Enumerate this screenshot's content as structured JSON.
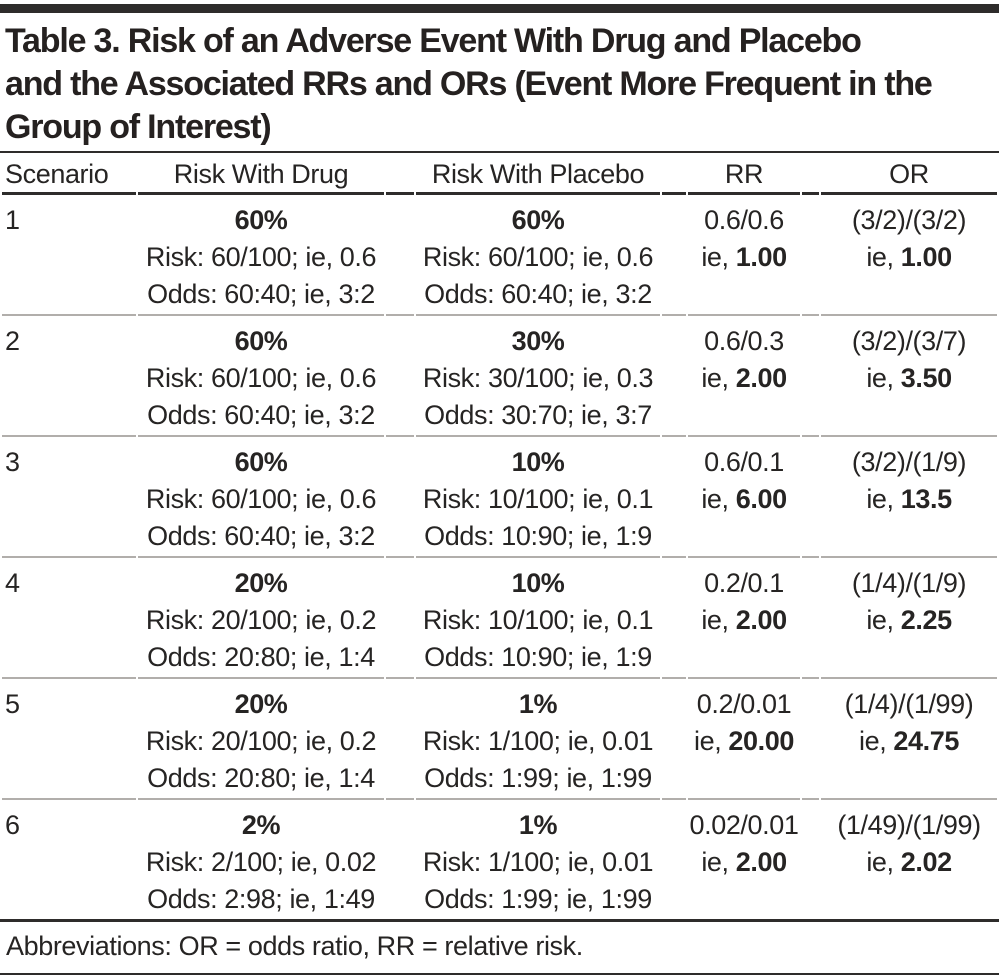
{
  "colors": {
    "text": "#262423",
    "rule_dark": "#2e2c2b",
    "rule_light": "#b1aeab",
    "background": "#ffffff"
  },
  "title_lines": [
    "Table 3. Risk of an Adverse Event With Drug and Placebo",
    "and the Associated RRs and ORs (Event More Frequent in the",
    "Group of Interest)"
  ],
  "columns": {
    "scenario": "Scenario",
    "drug": "Risk With Drug",
    "placebo": "Risk With Placebo",
    "rr": "RR",
    "or": "OR"
  },
  "rows": [
    {
      "scenario": "1",
      "drug": {
        "percent": "60%",
        "risk": "Risk: 60/100; ie, 0.6",
        "odds": "Odds: 60:40; ie, 3:2"
      },
      "placebo": {
        "percent": "60%",
        "risk": "Risk: 60/100; ie, 0.6",
        "odds": "Odds: 60:40; ie, 3:2"
      },
      "rr": {
        "formula": "0.6/0.6",
        "prefix": "ie, ",
        "value": "1.00"
      },
      "or": {
        "formula": "(3/2)/(3/2)",
        "prefix": "ie, ",
        "value": "1.00"
      }
    },
    {
      "scenario": "2",
      "drug": {
        "percent": "60%",
        "risk": "Risk: 60/100; ie, 0.6",
        "odds": "Odds: 60:40; ie, 3:2"
      },
      "placebo": {
        "percent": "30%",
        "risk": "Risk: 30/100; ie, 0.3",
        "odds": "Odds: 30:70; ie, 3:7"
      },
      "rr": {
        "formula": "0.6/0.3",
        "prefix": "ie, ",
        "value": "2.00"
      },
      "or": {
        "formula": "(3/2)/(3/7)",
        "prefix": "ie, ",
        "value": "3.50"
      }
    },
    {
      "scenario": "3",
      "drug": {
        "percent": "60%",
        "risk": "Risk: 60/100; ie, 0.6",
        "odds": "Odds: 60:40; ie, 3:2"
      },
      "placebo": {
        "percent": "10%",
        "risk": "Risk: 10/100; ie, 0.1",
        "odds": "Odds: 10:90; ie, 1:9"
      },
      "rr": {
        "formula": "0.6/0.1",
        "prefix": "ie, ",
        "value": "6.00"
      },
      "or": {
        "formula": "(3/2)/(1/9)",
        "prefix": "ie, ",
        "value": "13.5"
      }
    },
    {
      "scenario": "4",
      "drug": {
        "percent": "20%",
        "risk": "Risk: 20/100; ie, 0.2",
        "odds": "Odds: 20:80; ie, 1:4"
      },
      "placebo": {
        "percent": "10%",
        "risk": "Risk: 10/100; ie, 0.1",
        "odds": "Odds: 10:90; ie, 1:9"
      },
      "rr": {
        "formula": "0.2/0.1",
        "prefix": "ie, ",
        "value": "2.00"
      },
      "or": {
        "formula": "(1/4)/(1/9)",
        "prefix": "ie, ",
        "value": "2.25"
      }
    },
    {
      "scenario": "5",
      "drug": {
        "percent": "20%",
        "risk": "Risk: 20/100; ie, 0.2",
        "odds": "Odds: 20:80; ie, 1:4"
      },
      "placebo": {
        "percent": "1%",
        "risk": "Risk: 1/100; ie, 0.01",
        "odds": "Odds: 1:99; ie, 1:99"
      },
      "rr": {
        "formula": "0.2/0.01",
        "prefix": "ie, ",
        "value": "20.00"
      },
      "or": {
        "formula": "(1/4)/(1/99)",
        "prefix": "ie, ",
        "value": "24.75"
      }
    },
    {
      "scenario": "6",
      "drug": {
        "percent": "2%",
        "risk": "Risk: 2/100; ie, 0.02",
        "odds": "Odds: 2:98; ie, 1:49"
      },
      "placebo": {
        "percent": "1%",
        "risk": "Risk: 1/100; ie, 0.01",
        "odds": "Odds: 1:99; ie, 1:99"
      },
      "rr": {
        "formula": "0.02/0.01",
        "prefix": "ie, ",
        "value": "2.00"
      },
      "or": {
        "formula": "(1/49)/(1/99)",
        "prefix": "ie, ",
        "value": "2.02"
      }
    }
  ],
  "footnote": "Abbreviations: OR = odds ratio, RR = relative risk."
}
